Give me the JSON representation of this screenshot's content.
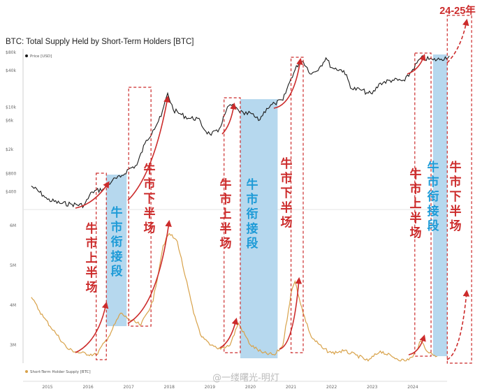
{
  "chart_data": [
    {
      "type": "line",
      "title": "BTC: Total Supply Held by Short-Term Holders [BTC]",
      "legend": "Price [USD]",
      "yscale": "log",
      "yticks": [
        "$80k",
        "$40k",
        "$10k",
        "$6k",
        "$2k",
        "$800",
        "$400"
      ],
      "x": [
        2014.6,
        2014.9,
        2015.0,
        2015.3,
        2015.6,
        2015.9,
        2016.1,
        2016.4,
        2016.6,
        2016.8,
        2017.0,
        2017.2,
        2017.4,
        2017.6,
        2017.8,
        2017.96,
        2018.1,
        2018.3,
        2018.5,
        2018.7,
        2018.9,
        2019.0,
        2019.2,
        2019.4,
        2019.5,
        2019.7,
        2019.85,
        2020.0,
        2020.2,
        2020.4,
        2020.6,
        2020.8,
        2021.0,
        2021.2,
        2021.3,
        2021.5,
        2021.7,
        2021.86,
        2022.0,
        2022.3,
        2022.5,
        2022.7,
        2022.9,
        2023.0,
        2023.2,
        2023.5,
        2023.8,
        2024.0,
        2024.2,
        2024.5,
        2024.7,
        2024.9
      ],
      "y": [
        500,
        350,
        300,
        260,
        250,
        240,
        400,
        450,
        620,
        700,
        950,
        1100,
        2500,
        4200,
        7000,
        17000,
        9000,
        7500,
        6500,
        6500,
        4000,
        3600,
        3900,
        8500,
        11000,
        9000,
        7500,
        8000,
        6000,
        9500,
        11500,
        13000,
        30000,
        55000,
        57000,
        35000,
        45000,
        65000,
        45000,
        40000,
        20000,
        19500,
        17000,
        16500,
        25000,
        28000,
        27000,
        42000,
        65000,
        60000,
        62000,
        70000
      ]
    },
    {
      "type": "line",
      "legend": "Short-Term Holder Supply [BTC]",
      "yticks": [
        "6M",
        "5M",
        "4M",
        "3M"
      ],
      "x": [
        2014.6,
        2014.9,
        2015.2,
        2015.5,
        2015.8,
        2016.2,
        2016.5,
        2016.8,
        2017.0,
        2017.3,
        2017.6,
        2017.85,
        2018.0,
        2018.2,
        2018.4,
        2018.6,
        2018.8,
        2019.0,
        2019.2,
        2019.5,
        2019.7,
        2020.0,
        2020.3,
        2020.6,
        2020.8,
        2021.0,
        2021.1,
        2021.3,
        2021.5,
        2021.8,
        2022.0,
        2022.3,
        2022.6,
        2022.9,
        2023.2,
        2023.5,
        2023.8,
        2024.0,
        2024.2,
        2024.4,
        2024.6
      ],
      "y": [
        4.2,
        3.7,
        3.3,
        2.9,
        2.8,
        2.75,
        3.2,
        3.8,
        3.65,
        3.5,
        4.1,
        5.5,
        5.8,
        5.6,
        4.7,
        3.8,
        3.2,
        3.0,
        2.9,
        3.0,
        3.55,
        3.0,
        2.8,
        2.75,
        3.0,
        4.3,
        4.6,
        3.8,
        3.2,
        2.9,
        2.8,
        2.85,
        2.75,
        2.6,
        2.85,
        2.7,
        2.6,
        2.7,
        3.1,
        2.8,
        2.72
      ]
    }
  ],
  "x_axis_years": [
    "2015",
    "2016",
    "2017",
    "2018",
    "2019",
    "2020",
    "2021",
    "2022",
    "2023",
    "2024"
  ],
  "annotations": {
    "top_label": "24-25年",
    "phase_labels": [
      {
        "text": "牛市上半场",
        "color": "#cc2b2b"
      },
      {
        "text": "牛市衔接段",
        "color": "#1e9bd7"
      },
      {
        "text": "牛市下半场",
        "color": "#cc2b2b"
      },
      {
        "text": "牛市上半场",
        "color": "#cc2b2b"
      },
      {
        "text": "牛市衔接段",
        "color": "#1e9bd7"
      },
      {
        "text": "牛市下半场",
        "color": "#cc2b2b"
      },
      {
        "text": "牛市上半场",
        "color": "#cc2b2b"
      },
      {
        "text": "牛市衔接段",
        "color": "#1e9bd7"
      },
      {
        "text": "牛市下半场",
        "color": "#cc2b2b"
      }
    ],
    "watermark": "@一缕曙光-明灯"
  },
  "colors": {
    "price_line": "#1a1a1a",
    "supply_line": "#d8a24a",
    "phase_red": "#cc2b2b",
    "phase_blue": "#1e9bd7",
    "band_fill": "#b6d8ee"
  }
}
